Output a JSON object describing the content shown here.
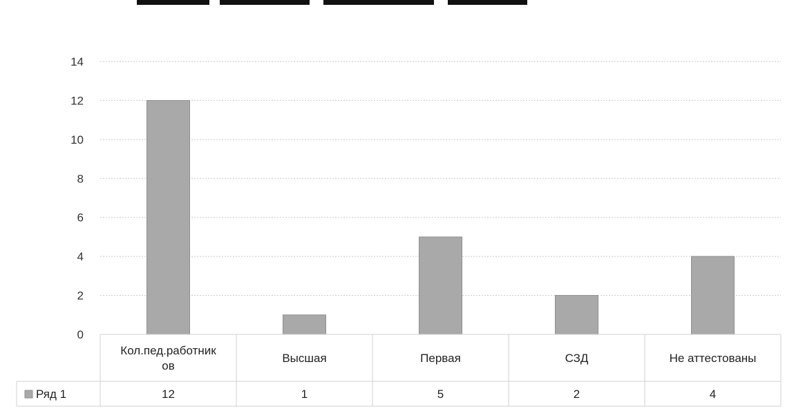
{
  "colors": {
    "bar": "#a9a9a9",
    "bar_edge": "#8f8f8f",
    "grid": "#c9c9c9",
    "title_strip": "#111111"
  },
  "chart_data": {
    "type": "bar",
    "title": "",
    "xlabel": "",
    "ylabel": "",
    "ylim": [
      0,
      14
    ],
    "yticks": [
      0,
      2,
      4,
      6,
      8,
      10,
      12,
      14
    ],
    "grid": true,
    "legend": "data-table-left",
    "categories": [
      [
        "Кол.пед.работник",
        "ов"
      ],
      [
        "Высшая"
      ],
      [
        "Первая"
      ],
      [
        "СЗД"
      ],
      [
        "Не аттестованы"
      ]
    ],
    "series": [
      {
        "name": "Ряд 1",
        "values": [
          12,
          1,
          5,
          2,
          4
        ]
      }
    ]
  }
}
